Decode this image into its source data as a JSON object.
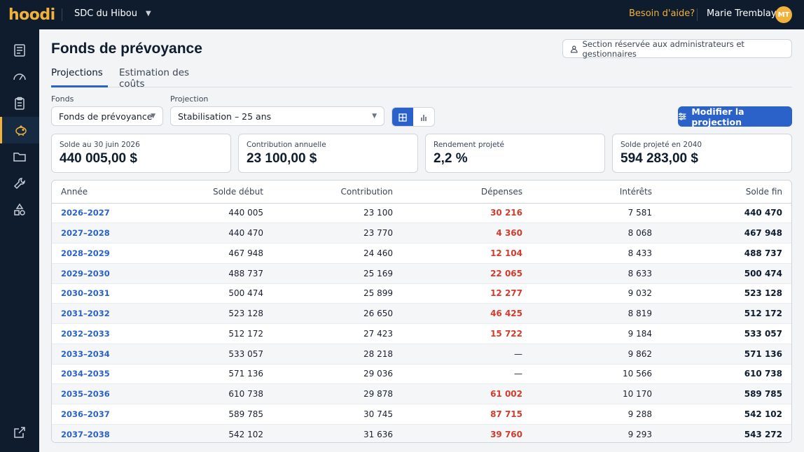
{
  "topbar": {
    "logo": "hoodi",
    "organization": "SDC du Hibou",
    "help_label": "Besoin d'aide?",
    "user_name": "Marie Tremblay",
    "user_initials": "MT"
  },
  "sidebar": {
    "items": [
      {
        "icon": "document-list-icon"
      },
      {
        "icon": "gauge-icon"
      },
      {
        "icon": "clipboard-icon"
      },
      {
        "icon": "piggy-bank-icon",
        "active": true
      },
      {
        "icon": "folder-icon"
      },
      {
        "icon": "wrench-icon"
      },
      {
        "icon": "shapes-icon"
      }
    ],
    "bottom_icon": "external-link-icon"
  },
  "page": {
    "title": "Fonds de prévoyance",
    "restricted_label": "Section réservée aux administrateurs et gestionnaires"
  },
  "tabs": [
    {
      "label": "Projections",
      "active": true
    },
    {
      "label": "Estimation des coûts",
      "active": false
    }
  ],
  "filters": {
    "fund_label": "Fonds",
    "fund_value": "Fonds de prévoyance",
    "projection_label": "Projection",
    "projection_value": "Stabilisation – 25 ans"
  },
  "actions": {
    "edit_projection": "Modifier la projection"
  },
  "summary_cards": [
    {
      "label": "Solde au 30 juin 2026",
      "value": "440 005,00 $"
    },
    {
      "label": "Contribution annuelle",
      "value": "23 100,00 $"
    },
    {
      "label": "Rendement projeté",
      "value": "2,2 %"
    },
    {
      "label": "Solde projeté en 2040",
      "value": "594 283,00 $"
    }
  ],
  "table": {
    "headers": [
      "Année",
      "Solde début",
      "Contribution",
      "Dépenses",
      "Intérêts",
      "Solde fin"
    ],
    "rows": [
      [
        "2026–2027",
        "440 005",
        "23 100",
        "30 216",
        "7 581",
        "440 470"
      ],
      [
        "2027–2028",
        "440 470",
        "23 770",
        "4 360",
        "8 068",
        "467 948"
      ],
      [
        "2028–2029",
        "467 948",
        "24 460",
        "12 104",
        "8 433",
        "488 737"
      ],
      [
        "2029–2030",
        "488 737",
        "25 169",
        "22 065",
        "8 633",
        "500 474"
      ],
      [
        "2030–2031",
        "500 474",
        "25 899",
        "12 277",
        "9 032",
        "523 128"
      ],
      [
        "2031–2032",
        "523 128",
        "26 650",
        "46 425",
        "8 819",
        "512 172"
      ],
      [
        "2032–2033",
        "512 172",
        "27 423",
        "15 722",
        "9 184",
        "533 057"
      ],
      [
        "2033–2034",
        "533 057",
        "28 218",
        "—",
        "9 862",
        "571 136"
      ],
      [
        "2034–2035",
        "571 136",
        "29 036",
        "—",
        "10 566",
        "610 738"
      ],
      [
        "2035–2036",
        "610 738",
        "29 878",
        "61 002",
        "10 170",
        "589 785"
      ],
      [
        "2036–2037",
        "589 785",
        "30 745",
        "87 715",
        "9 288",
        "542 102"
      ],
      [
        "2037–2038",
        "542 102",
        "31 636",
        "39 760",
        "9 293",
        "543 272"
      ]
    ]
  }
}
